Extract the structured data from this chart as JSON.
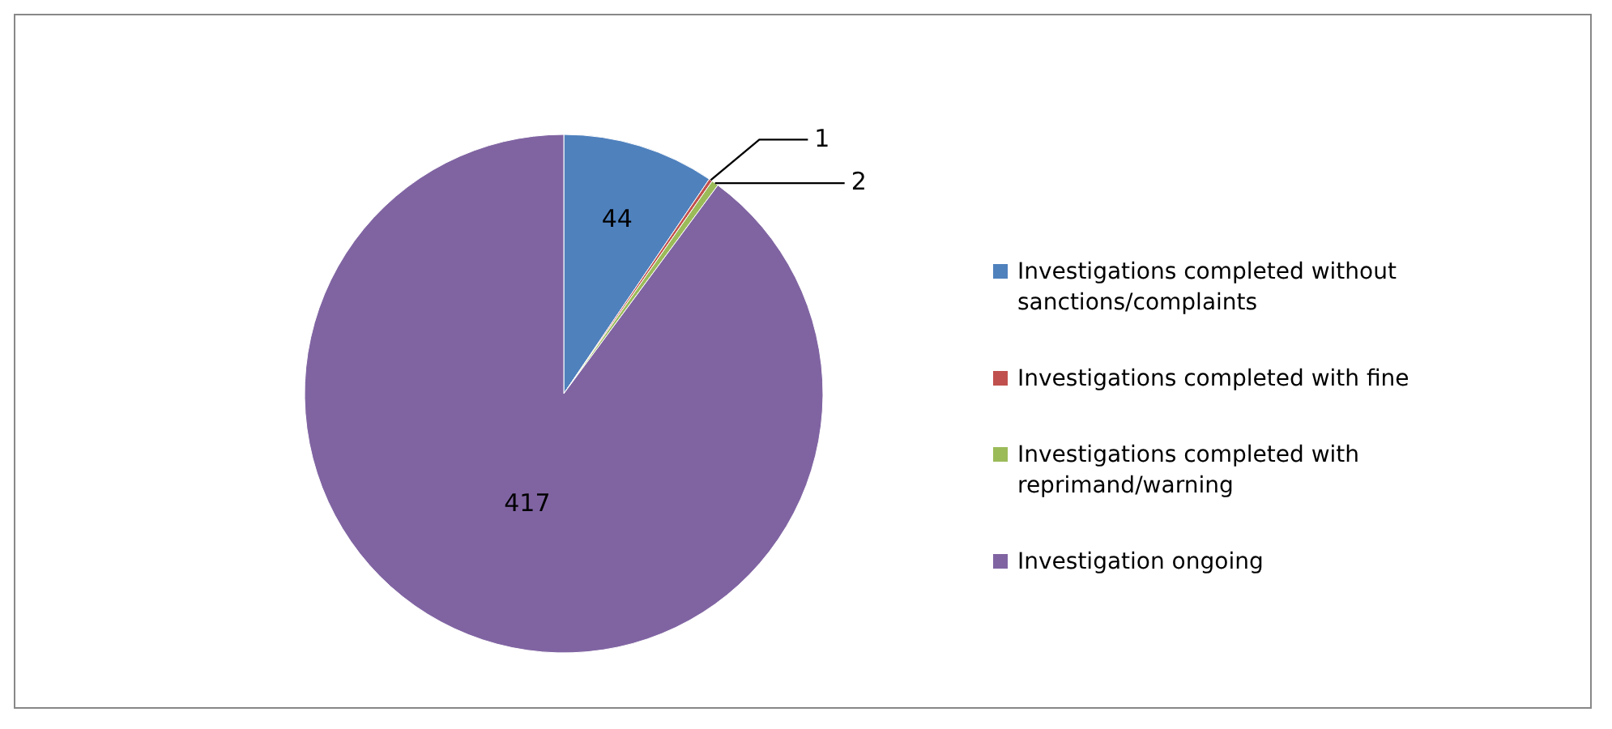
{
  "chart_data": {
    "type": "pie",
    "categories": [
      "Investigations completed without sanctions/complaints",
      "Investigations completed with fine",
      "Investigations completed with reprimand/warning",
      "Investigation ongoing"
    ],
    "values": [
      44,
      1,
      2,
      417
    ],
    "colors": [
      "#4f81bd",
      "#c0504d",
      "#9bbb59",
      "#8064a2"
    ],
    "data_labels": true,
    "legend": "right"
  }
}
